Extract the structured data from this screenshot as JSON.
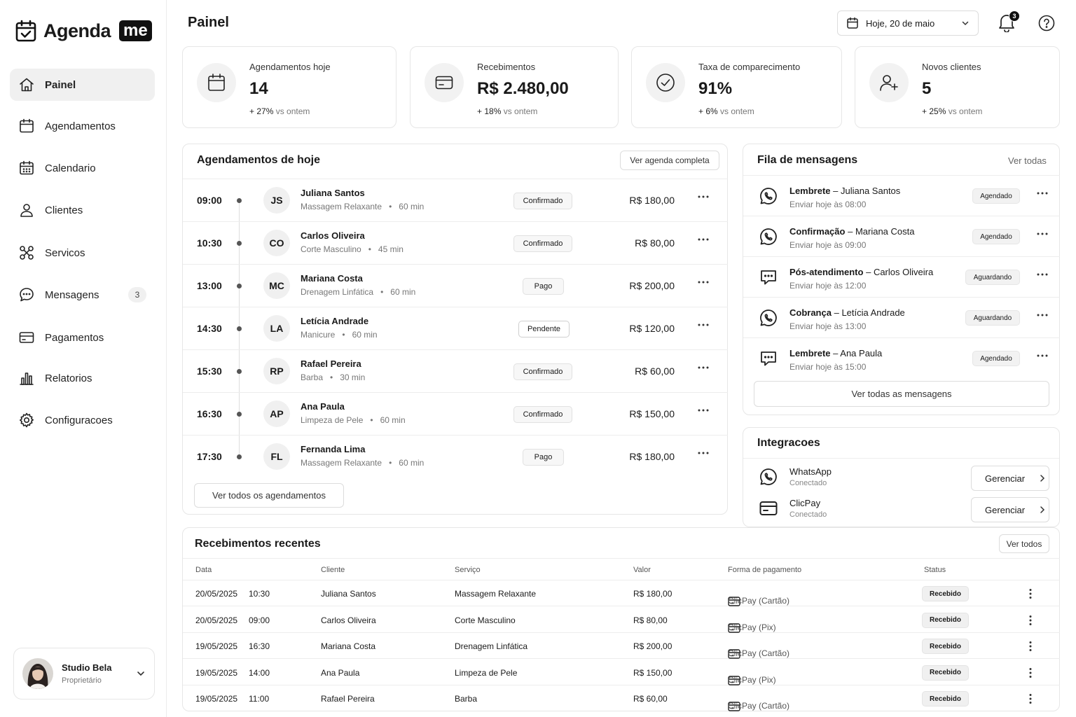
{
  "app": {
    "logo_text": "Agenda",
    "logo_badge": "me"
  },
  "sidebar": {
    "items": [
      {
        "label": "Painel",
        "icon": "home-icon",
        "active": true
      },
      {
        "label": "Agendamentos",
        "icon": "calendar-icon"
      },
      {
        "label": "Calendario",
        "icon": "calendar-grid-icon"
      },
      {
        "label": "Clientes",
        "icon": "user-icon"
      },
      {
        "label": "Servicos",
        "icon": "scissors-icon"
      },
      {
        "label": "Mensagens",
        "icon": "message-icon",
        "badge": "3"
      },
      {
        "label": "Pagamentos",
        "icon": "credit-card-icon"
      },
      {
        "label": "Relatorios",
        "icon": "bar-chart-icon"
      },
      {
        "label": "Configuracoes",
        "icon": "gear-icon"
      }
    ],
    "profile": {
      "name": "Studio Bela",
      "role": "Proprietário"
    }
  },
  "header": {
    "title": "Painel",
    "date_select": "Hoje, 20 de maio",
    "notification_count": "3"
  },
  "stats": [
    {
      "label": "Agendamentos hoje",
      "value": "14",
      "change": "+ 27%",
      "change_sub": "vs ontem",
      "icon": "calendar-icon"
    },
    {
      "label": "Recebimentos",
      "value": "R$ 2.480,00",
      "change": "+ 18%",
      "change_sub": "vs ontem",
      "icon": "wallet-icon"
    },
    {
      "label": "Taxa de comparecimento",
      "value": "91%",
      "change": "+ 6%",
      "change_sub": "vs ontem",
      "icon": "check-circle-icon"
    },
    {
      "label": "Novos clientes",
      "value": "5",
      "change": "+ 25%",
      "change_sub": "vs ontem",
      "icon": "user-plus-icon"
    }
  ],
  "appointments": {
    "title": "Agendamentos de hoje",
    "view_full": "Ver agenda completa",
    "view_all": "Ver todos os agendamentos",
    "rows": [
      {
        "time": "09:00",
        "initials": "JS",
        "name": "Juliana Santos",
        "service": "Massagem Relaxante",
        "duration": "60 min",
        "status": "Confirmado",
        "price": "R$ 180,00"
      },
      {
        "time": "10:30",
        "initials": "CO",
        "name": "Carlos Oliveira",
        "service": "Corte Masculino",
        "duration": "45 min",
        "status": "Confirmado",
        "price": "R$ 80,00"
      },
      {
        "time": "13:00",
        "initials": "MC",
        "name": "Mariana Costa",
        "service": "Drenagem Linfática",
        "duration": "60 min",
        "status": "Pago",
        "price": "R$ 200,00"
      },
      {
        "time": "14:30",
        "initials": "LA",
        "name": "Letícia Andrade",
        "service": "Manicure",
        "duration": "60 min",
        "status": "Pendente",
        "price": "R$ 120,00"
      },
      {
        "time": "15:30",
        "initials": "RP",
        "name": "Rafael Pereira",
        "service": "Barba",
        "duration": "30 min",
        "status": "Confirmado",
        "price": "R$ 60,00"
      },
      {
        "time": "16:30",
        "initials": "AP",
        "name": "Ana Paula",
        "service": "Limpeza de Pele",
        "duration": "60 min",
        "status": "Confirmado",
        "price": "R$ 150,00"
      },
      {
        "time": "17:30",
        "initials": "FL",
        "name": "Fernanda Lima",
        "service": "Massagem Relaxante",
        "duration": "60 min",
        "status": "Pago",
        "price": "R$ 180,00"
      }
    ]
  },
  "messages": {
    "title": "Fila de mensagens",
    "view_all_link": "Ver todas",
    "view_all_button": "Ver todas as mensagens",
    "rows": [
      {
        "type": "Lembrete",
        "client": "Juliana Santos",
        "when": "Enviar hoje às 08:00",
        "status": "Agendado",
        "icon": "whatsapp-icon"
      },
      {
        "type": "Confirmação",
        "client": "Mariana Costa",
        "when": "Enviar hoje às 09:00",
        "status": "Agendado",
        "icon": "whatsapp-icon"
      },
      {
        "type": "Pós-atendimento",
        "client": "Carlos Oliveira",
        "when": "Enviar hoje às 12:00",
        "status": "Aguardando",
        "icon": "chat-bubble-icon"
      },
      {
        "type": "Cobrança",
        "client": "Letícia Andrade",
        "when": "Enviar hoje às 13:00",
        "status": "Aguardando",
        "icon": "whatsapp-icon"
      },
      {
        "type": "Lembrete",
        "client": "Ana Paula",
        "when": "Enviar hoje às 15:00",
        "status": "Agendado",
        "icon": "chat-bubble-icon"
      }
    ]
  },
  "integrations": {
    "title": "Integracoes",
    "rows": [
      {
        "name": "WhatsApp",
        "status": "Conectado",
        "action": "Gerenciar",
        "icon": "whatsapp-icon"
      },
      {
        "name": "ClicPay",
        "status": "Conectado",
        "action": "Gerenciar",
        "icon": "credit-card-icon"
      }
    ]
  },
  "receipts": {
    "title": "Recebimentos recentes",
    "view_all": "Ver todos",
    "columns": [
      "Data",
      "Cliente",
      "Serviço",
      "Valor",
      "Forma de pagamento",
      "Status"
    ],
    "rows": [
      {
        "date": "20/05/2025",
        "time": "10:30",
        "client": "Juliana Santos",
        "service": "Massagem Relaxante",
        "value": "R$ 180,00",
        "payment": "ClicPay (Cartão)",
        "status": "Recebido"
      },
      {
        "date": "20/05/2025",
        "time": "09:00",
        "client": "Carlos Oliveira",
        "service": "Corte Masculino",
        "value": "R$ 80,00",
        "payment": "ClicPay (Pix)",
        "status": "Recebido"
      },
      {
        "date": "19/05/2025",
        "time": "16:30",
        "client": "Mariana Costa",
        "service": "Drenagem Linfática",
        "value": "R$ 200,00",
        "payment": "ClicPay (Cartão)",
        "status": "Recebido"
      },
      {
        "date": "19/05/2025",
        "time": "14:00",
        "client": "Ana Paula",
        "service": "Limpeza de Pele",
        "value": "R$ 150,00",
        "payment": "ClicPay (Pix)",
        "status": "Recebido"
      },
      {
        "date": "19/05/2025",
        "time": "11:00",
        "client": "Rafael Pereira",
        "service": "Barba",
        "value": "R$ 60,00",
        "payment": "ClicPay (Cartão)",
        "status": "Recebido"
      }
    ]
  }
}
